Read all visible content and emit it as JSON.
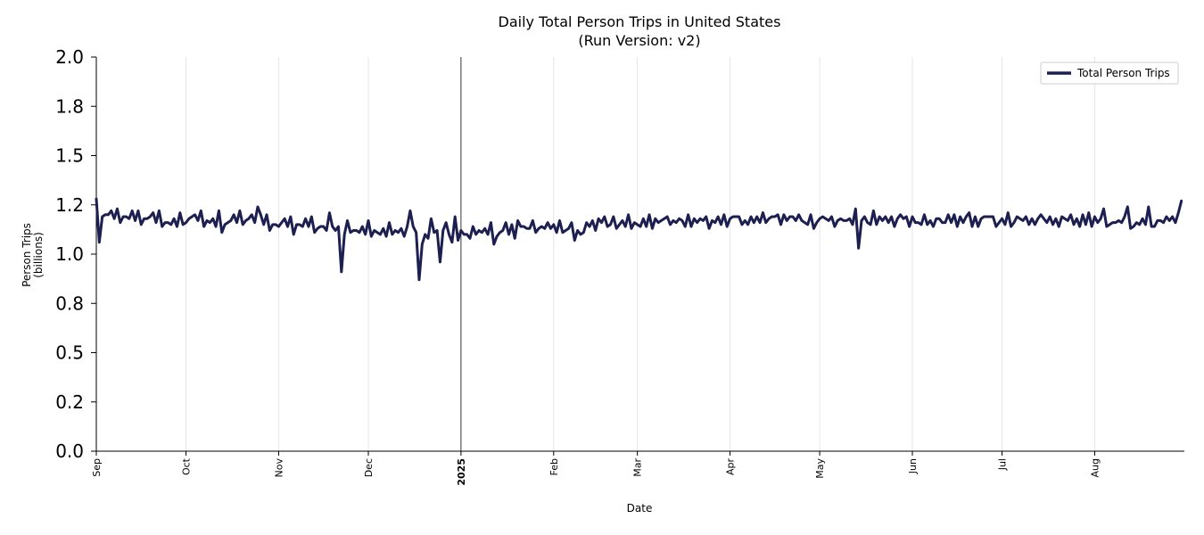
{
  "chart_data": {
    "type": "line",
    "title": "Daily Total Person Trips in United States",
    "subtitle": "(Run Version: v2)",
    "xlabel": "Date",
    "ylabel": "Person Trips",
    "ylabel_unit": "(billions)",
    "ylim": [
      0,
      2.0
    ],
    "yticks": [
      0.0,
      0.25,
      0.5,
      0.75,
      1.0,
      1.25,
      1.5,
      1.75,
      2.0
    ],
    "ytick_labels": [
      "0.0",
      "0.2",
      "0.5",
      "0.8",
      "1.0",
      "1.2",
      "1.5",
      "1.8",
      "2.0"
    ],
    "x_start": "2024-09-01",
    "x_end": "2025-08-31",
    "xticks": [
      {
        "date": "2024-09-01",
        "label": "Sep"
      },
      {
        "date": "2024-10-01",
        "label": "Oct"
      },
      {
        "date": "2024-11-01",
        "label": "Nov"
      },
      {
        "date": "2024-12-01",
        "label": "Dec"
      },
      {
        "date": "2025-01-01",
        "label": "2025",
        "bold": true
      },
      {
        "date": "2025-02-01",
        "label": "Feb"
      },
      {
        "date": "2025-03-01",
        "label": "Mar"
      },
      {
        "date": "2025-04-01",
        "label": "Apr"
      },
      {
        "date": "2025-05-01",
        "label": "May"
      },
      {
        "date": "2025-06-01",
        "label": "Jun"
      },
      {
        "date": "2025-07-01",
        "label": "Jul"
      },
      {
        "date": "2025-08-01",
        "label": "Aug"
      }
    ],
    "year_boundary": "2025-01-01",
    "grid": "vertical",
    "legend": {
      "position": "top-right",
      "entries": [
        "Total Person Trips"
      ]
    },
    "series": [
      {
        "name": "Total Person Trips",
        "color": "#1c1f4f",
        "values": [
          1.28,
          1.06,
          1.19,
          1.2,
          1.2,
          1.22,
          1.18,
          1.23,
          1.16,
          1.19,
          1.19,
          1.18,
          1.22,
          1.17,
          1.22,
          1.15,
          1.18,
          1.18,
          1.19,
          1.21,
          1.16,
          1.22,
          1.14,
          1.16,
          1.16,
          1.15,
          1.18,
          1.14,
          1.21,
          1.15,
          1.16,
          1.18,
          1.19,
          1.2,
          1.17,
          1.22,
          1.14,
          1.17,
          1.16,
          1.18,
          1.14,
          1.22,
          1.11,
          1.15,
          1.16,
          1.17,
          1.2,
          1.16,
          1.22,
          1.15,
          1.17,
          1.18,
          1.2,
          1.16,
          1.24,
          1.2,
          1.15,
          1.2,
          1.12,
          1.15,
          1.15,
          1.14,
          1.16,
          1.18,
          1.14,
          1.19,
          1.1,
          1.15,
          1.15,
          1.14,
          1.18,
          1.14,
          1.19,
          1.11,
          1.13,
          1.14,
          1.14,
          1.12,
          1.21,
          1.14,
          1.12,
          1.14,
          0.91,
          1.1,
          1.17,
          1.11,
          1.12,
          1.12,
          1.11,
          1.14,
          1.1,
          1.17,
          1.09,
          1.12,
          1.11,
          1.1,
          1.13,
          1.09,
          1.16,
          1.1,
          1.12,
          1.11,
          1.13,
          1.09,
          1.14,
          1.22,
          1.14,
          1.11,
          0.87,
          1.05,
          1.1,
          1.08,
          1.18,
          1.11,
          1.12,
          0.96,
          1.12,
          1.16,
          1.1,
          1.06,
          1.19,
          1.07,
          1.12,
          1.1,
          1.1,
          1.08,
          1.14,
          1.1,
          1.12,
          1.11,
          1.13,
          1.1,
          1.16,
          1.05,
          1.09,
          1.11,
          1.12,
          1.16,
          1.1,
          1.15,
          1.08,
          1.17,
          1.14,
          1.14,
          1.13,
          1.13,
          1.17,
          1.11,
          1.13,
          1.14,
          1.13,
          1.16,
          1.13,
          1.15,
          1.11,
          1.17,
          1.11,
          1.12,
          1.13,
          1.16,
          1.07,
          1.12,
          1.1,
          1.11,
          1.16,
          1.14,
          1.17,
          1.12,
          1.18,
          1.16,
          1.19,
          1.14,
          1.15,
          1.19,
          1.13,
          1.15,
          1.17,
          1.14,
          1.2,
          1.13,
          1.16,
          1.15,
          1.14,
          1.18,
          1.14,
          1.2,
          1.13,
          1.18,
          1.16,
          1.17,
          1.18,
          1.19,
          1.15,
          1.17,
          1.16,
          1.18,
          1.17,
          1.14,
          1.2,
          1.14,
          1.18,
          1.16,
          1.18,
          1.17,
          1.19,
          1.13,
          1.17,
          1.16,
          1.19,
          1.15,
          1.2,
          1.14,
          1.18,
          1.19,
          1.19,
          1.19,
          1.15,
          1.17,
          1.15,
          1.19,
          1.16,
          1.19,
          1.16,
          1.21,
          1.16,
          1.18,
          1.19,
          1.19,
          1.2,
          1.15,
          1.2,
          1.17,
          1.19,
          1.19,
          1.17,
          1.2,
          1.17,
          1.16,
          1.15,
          1.2,
          1.13,
          1.16,
          1.18,
          1.19,
          1.18,
          1.17,
          1.19,
          1.14,
          1.17,
          1.18,
          1.17,
          1.17,
          1.18,
          1.15,
          1.23,
          1.03,
          1.17,
          1.19,
          1.16,
          1.15,
          1.22,
          1.15,
          1.19,
          1.17,
          1.19,
          1.16,
          1.19,
          1.14,
          1.18,
          1.2,
          1.18,
          1.19,
          1.14,
          1.19,
          1.16,
          1.16,
          1.15,
          1.2,
          1.15,
          1.17,
          1.14,
          1.18,
          1.18,
          1.16,
          1.16,
          1.2,
          1.16,
          1.2,
          1.14,
          1.19,
          1.16,
          1.19,
          1.21,
          1.14,
          1.19,
          1.14,
          1.18,
          1.19,
          1.19,
          1.19,
          1.19,
          1.14,
          1.16,
          1.18,
          1.15,
          1.21,
          1.14,
          1.16,
          1.19,
          1.18,
          1.17,
          1.19,
          1.15,
          1.18,
          1.15,
          1.18,
          1.2,
          1.18,
          1.16,
          1.19,
          1.15,
          1.18,
          1.14,
          1.19,
          1.18,
          1.17,
          1.2,
          1.15,
          1.18,
          1.14,
          1.2,
          1.15,
          1.21,
          1.14,
          1.19,
          1.16,
          1.18,
          1.23,
          1.14,
          1.15,
          1.16,
          1.16,
          1.17,
          1.16,
          1.19,
          1.24,
          1.13,
          1.14,
          1.16,
          1.15,
          1.18,
          1.15,
          1.24,
          1.14,
          1.14,
          1.17,
          1.17,
          1.16,
          1.19,
          1.17,
          1.19,
          1.16,
          1.21,
          1.27
        ]
      }
    ]
  }
}
